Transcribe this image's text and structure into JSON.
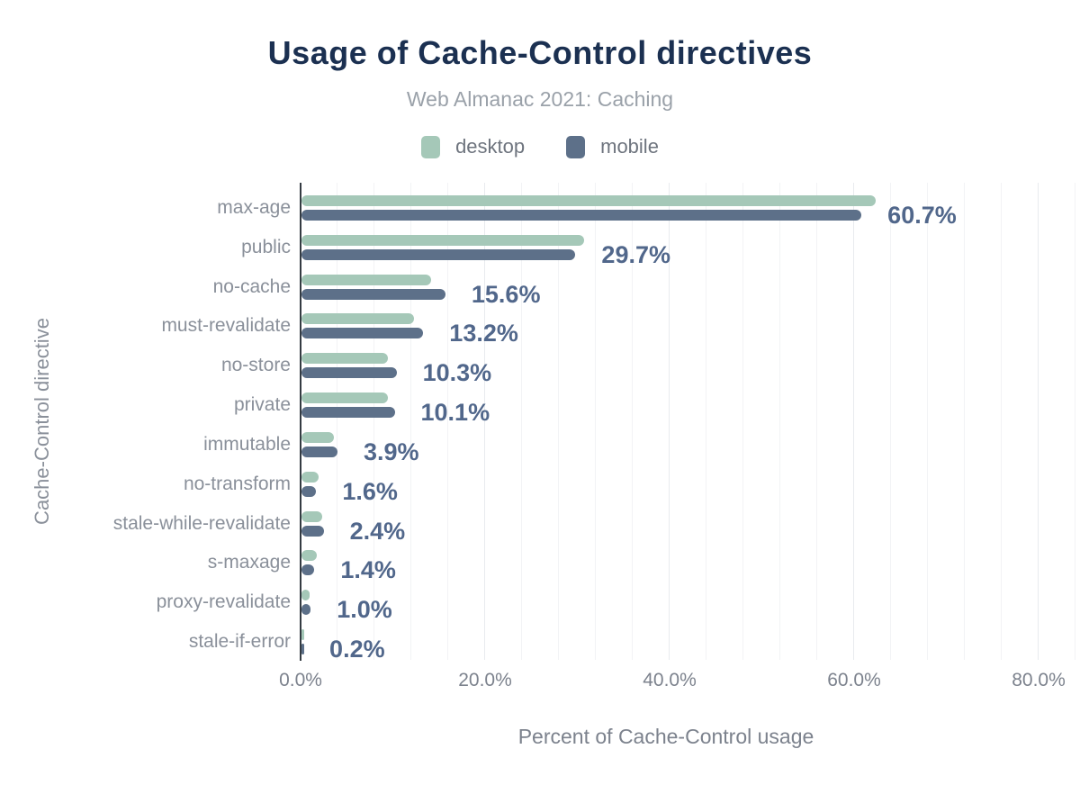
{
  "title": "Usage of Cache-Control directives",
  "subtitle": "Web Almanac 2021: Caching",
  "legend": [
    {
      "label": "desktop",
      "color": "#a5c8b8"
    },
    {
      "label": "mobile",
      "color": "#5d7089"
    }
  ],
  "colors": {
    "title": "#1b3051",
    "subtitle": "#9aa1a9",
    "desktop_bar": "#a5c8b8",
    "mobile_bar": "#5d7089",
    "value_label": "#51678b",
    "category_label": "#8a909a",
    "tick_label": "#7c828d",
    "axis_line": "#343b42",
    "background": "#ffffff"
  },
  "chart_data": {
    "type": "bar",
    "orientation": "horizontal",
    "title": "Usage of Cache-Control directives",
    "subtitle": "Web Almanac 2021: Caching",
    "xlabel": "Percent of Cache-Control usage",
    "ylabel": "Cache-Control directive",
    "xlim": [
      0,
      84
    ],
    "grid": "vertical, minor every 4%, major every 20%",
    "legend_position": "top-center",
    "categories": [
      "max-age",
      "public",
      "no-cache",
      "must-revalidate",
      "no-store",
      "private",
      "immutable",
      "no-transform",
      "stale-while-revalidate",
      "s-maxage",
      "proxy-revalidate",
      "stale-if-error"
    ],
    "series": [
      {
        "name": "desktop",
        "values": [
          62.2,
          30.6,
          14.0,
          12.2,
          9.4,
          9.4,
          3.5,
          1.9,
          2.2,
          1.7,
          0.9,
          0.2
        ]
      },
      {
        "name": "mobile",
        "values": [
          60.7,
          29.7,
          15.6,
          13.2,
          10.3,
          10.1,
          3.9,
          1.6,
          2.4,
          1.4,
          1.0,
          0.2
        ]
      }
    ],
    "value_labels": [
      "60.7%",
      "29.7%",
      "15.6%",
      "13.2%",
      "10.3%",
      "10.1%",
      "3.9%",
      "1.6%",
      "2.4%",
      "1.4%",
      "1.0%",
      "0.2%"
    ],
    "x_ticks": [
      {
        "value": 0,
        "label": "0.0%"
      },
      {
        "value": 20,
        "label": "20.0%"
      },
      {
        "value": 40,
        "label": "40.0%"
      },
      {
        "value": 60,
        "label": "60.0%"
      },
      {
        "value": 80,
        "label": "80.0%"
      }
    ]
  }
}
